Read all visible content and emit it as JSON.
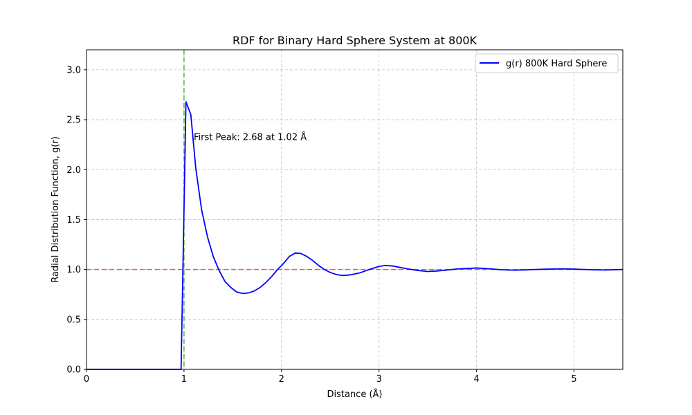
{
  "chart_data": {
    "type": "line",
    "title": "RDF for Binary Hard Sphere System at 800K",
    "xlabel": "Distance (Å)",
    "ylabel": "Radial Distribution Function, g(r)",
    "xlim": [
      0,
      5.5
    ],
    "ylim": [
      0,
      3.2
    ],
    "x_ticks": [
      0,
      1,
      2,
      3,
      4,
      5
    ],
    "y_ticks": [
      0.0,
      0.5,
      1.0,
      1.5,
      2.0,
      2.5,
      3.0
    ],
    "x_tick_labels": [
      "0",
      "1",
      "2",
      "3",
      "4",
      "5"
    ],
    "y_tick_labels": [
      "0.0",
      "0.5",
      "1.0",
      "1.5",
      "2.0",
      "2.5",
      "3.0"
    ],
    "grid": true,
    "legend_position": "top-right",
    "series": [
      {
        "name": "g(r) 800K Hard Sphere",
        "color": "#0000ff",
        "x": [
          0,
          0.95,
          0.97,
          1.02,
          1.07,
          1.12,
          1.18,
          1.24,
          1.3,
          1.36,
          1.42,
          1.48,
          1.54,
          1.6,
          1.66,
          1.72,
          1.78,
          1.84,
          1.9,
          1.96,
          2.02,
          2.08,
          2.14,
          2.2,
          2.26,
          2.32,
          2.38,
          2.44,
          2.5,
          2.56,
          2.62,
          2.7,
          2.8,
          2.9,
          3.0,
          3.06,
          3.14,
          3.22,
          3.3,
          3.4,
          3.5,
          3.6,
          3.7,
          3.8,
          3.9,
          4.0,
          4.08,
          4.16,
          4.24,
          4.32,
          4.4,
          4.5,
          4.6,
          4.7,
          4.8,
          4.9,
          5.0,
          5.1,
          5.2,
          5.3,
          5.4,
          5.5
        ],
        "y": [
          0,
          0,
          0,
          2.68,
          2.55,
          2.02,
          1.6,
          1.33,
          1.13,
          0.99,
          0.88,
          0.82,
          0.775,
          0.76,
          0.765,
          0.785,
          0.82,
          0.87,
          0.93,
          1.0,
          1.06,
          1.13,
          1.165,
          1.16,
          1.13,
          1.09,
          1.04,
          1.0,
          0.97,
          0.95,
          0.94,
          0.945,
          0.965,
          1.0,
          1.03,
          1.04,
          1.035,
          1.02,
          1.005,
          0.99,
          0.98,
          0.985,
          0.995,
          1.005,
          1.01,
          1.015,
          1.01,
          1.005,
          0.998,
          0.995,
          0.993,
          0.996,
          1.0,
          1.003,
          1.005,
          1.006,
          1.004,
          1.0,
          0.997,
          0.995,
          0.997,
          1.0
        ]
      }
    ],
    "reference_lines": [
      {
        "orientation": "horizontal",
        "value": 1.0,
        "color": "#e8392b",
        "style": "dashed"
      },
      {
        "orientation": "vertical",
        "value": 1.0,
        "color": "#2ca02c",
        "style": "dashed"
      }
    ],
    "annotations": [
      {
        "text": "First Peak: 2.68 at 1.02 Å",
        "x": 1.1,
        "y": 2.33
      }
    ]
  }
}
